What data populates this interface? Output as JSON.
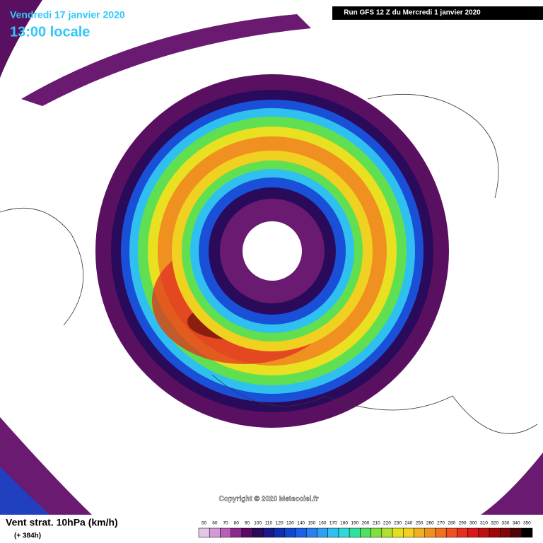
{
  "header": {
    "date": "Vendredi 17 janvier 2020",
    "time": "13:00 locale",
    "run": "Run GFS 12 Z du Mercredi 1 janvier 2020"
  },
  "copyright": "Copyright © 2020 Meteociel.fr",
  "footer": {
    "title": "Vent strat. 10hPa (km/h)",
    "lead": "(+ 384h)"
  },
  "legend": {
    "values": [
      50,
      60,
      70,
      80,
      90,
      100,
      110,
      120,
      130,
      140,
      150,
      160,
      170,
      180,
      190,
      200,
      210,
      220,
      230,
      240,
      250,
      260,
      270,
      280,
      290,
      300,
      310,
      320,
      330,
      340,
      350
    ],
    "colors": [
      "#e6c6e6",
      "#d49ad4",
      "#b860b8",
      "#8a2a8a",
      "#5a0a64",
      "#2a0a5a",
      "#1a1a8a",
      "#1030b0",
      "#1048d0",
      "#1a60e8",
      "#2a80f0",
      "#30a0f0",
      "#30c0f0",
      "#30d8d8",
      "#30e0a0",
      "#50e060",
      "#80e040",
      "#b0e030",
      "#e0e020",
      "#f0d020",
      "#f0b020",
      "#f09020",
      "#f07020",
      "#f05020",
      "#e83020",
      "#d81818",
      "#c01010",
      "#a00808",
      "#800808",
      "#500404",
      "#000000"
    ]
  }
}
